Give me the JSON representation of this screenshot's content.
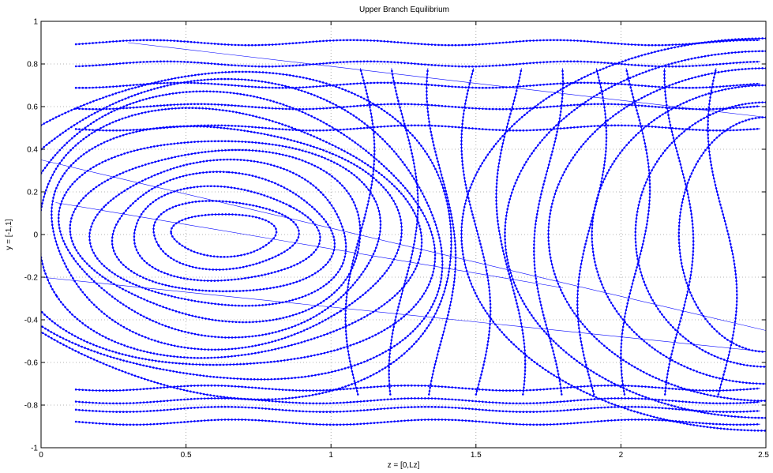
{
  "chart_data": {
    "type": "line",
    "title": "Upper Branch Equilibrium",
    "xlabel": "z = [0,Lz]",
    "ylabel": "y = [-1,1]",
    "xlim": [
      0,
      2.5
    ],
    "ylim": [
      -1,
      1
    ],
    "grid": true,
    "line_color": "#0000ff",
    "x_ticks": [
      0,
      0.5,
      1,
      1.5,
      2,
      2.5
    ],
    "x_tick_labels": [
      "0",
      "0.5",
      "1",
      "1.5",
      "2",
      "2.5"
    ],
    "y_ticks": [
      -1,
      -0.8,
      -0.6,
      -0.4,
      -0.2,
      0,
      0.2,
      0.4,
      0.6,
      0.8,
      1
    ],
    "y_tick_labels": [
      "-1",
      "-0.8",
      "-0.6",
      "-0.4",
      "-0.2",
      "0",
      "0.2",
      "0.4",
      "0.6",
      "0.8",
      "1"
    ],
    "vortex_center": [
      0.63,
      0.0
    ],
    "series": [
      {
        "kind": "vortex-loops",
        "radii": [
          [
            0.18,
            0.1
          ],
          [
            0.25,
            0.16
          ],
          [
            0.32,
            0.22
          ],
          [
            0.38,
            0.28
          ],
          [
            0.44,
            0.34
          ],
          [
            0.5,
            0.4
          ],
          [
            0.55,
            0.46
          ],
          [
            0.6,
            0.52
          ],
          [
            0.66,
            0.58
          ],
          [
            0.72,
            0.64
          ],
          [
            0.78,
            0.7
          ],
          [
            0.84,
            0.76
          ]
        ]
      },
      {
        "kind": "horizontal-streamlines",
        "y": [
          0.9,
          0.8,
          0.7,
          0.6,
          0.5,
          -0.72,
          -0.78,
          -0.82,
          -0.88
        ]
      },
      {
        "kind": "right-arcs",
        "center": [
          2.5,
          0.0
        ],
        "radii": [
          [
            0.3,
            0.55
          ],
          [
            0.45,
            0.62
          ],
          [
            0.6,
            0.7
          ],
          [
            0.75,
            0.78
          ],
          [
            0.9,
            0.86
          ],
          [
            1.05,
            0.92
          ]
        ]
      }
    ]
  }
}
